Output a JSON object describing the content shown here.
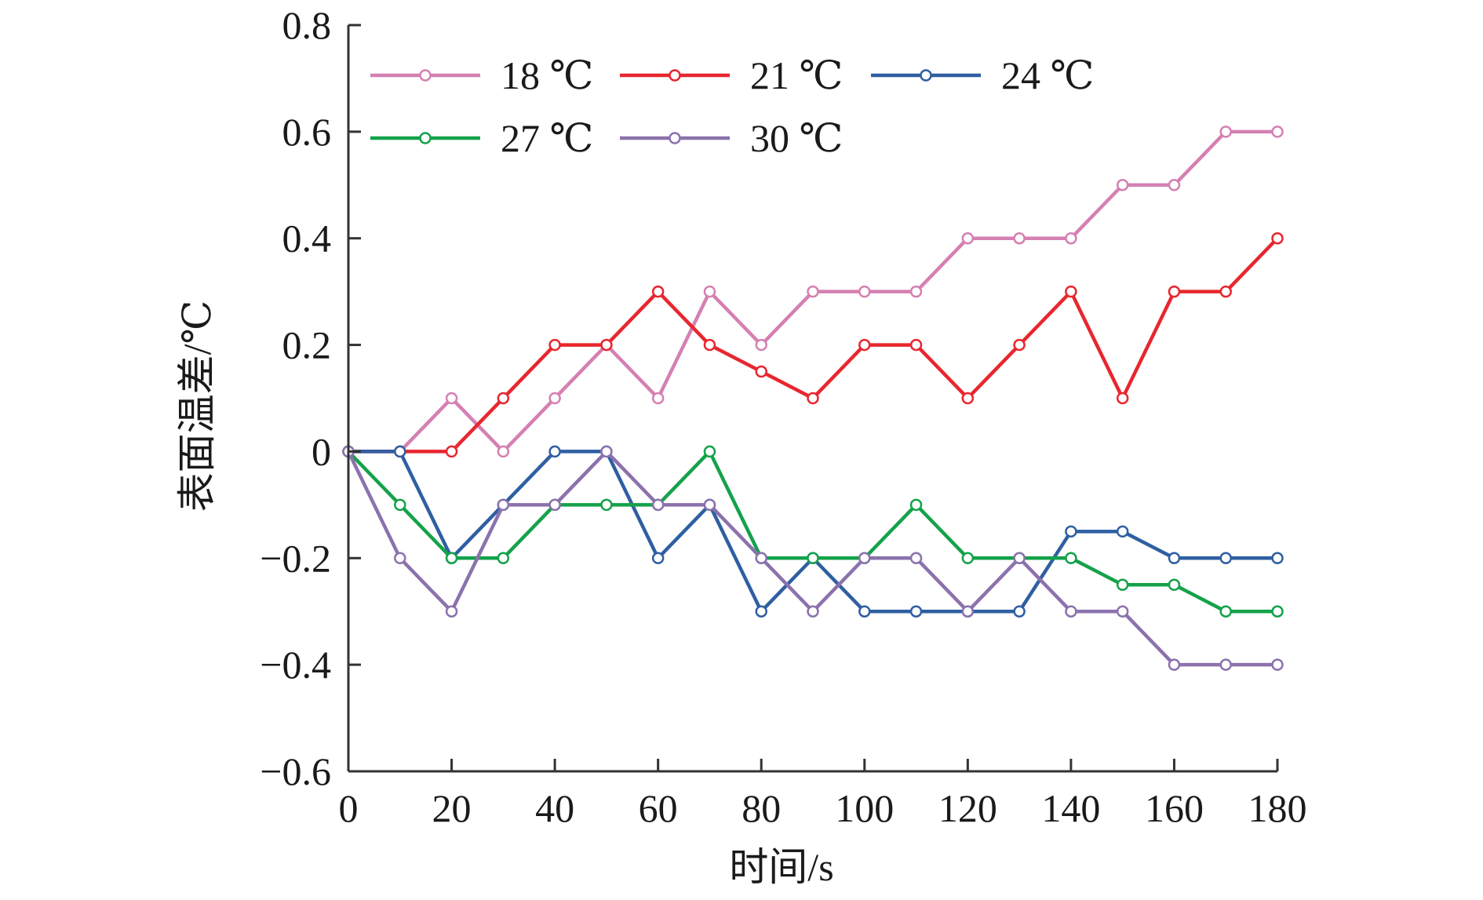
{
  "chart_data": {
    "type": "line",
    "title": "",
    "xlabel": "时间/s",
    "ylabel": "表面温差/℃",
    "xlim": [
      0,
      180
    ],
    "ylim": [
      -0.6,
      0.8
    ],
    "x_ticks": [
      0,
      20,
      40,
      60,
      80,
      100,
      120,
      140,
      160,
      180
    ],
    "x_tick_labels": [
      "0",
      "20",
      "40",
      "60",
      "80",
      "100",
      "120",
      "140",
      "160",
      "180"
    ],
    "y_ticks": [
      -0.6,
      -0.4,
      -0.2,
      0,
      0.2,
      0.4,
      0.6,
      0.8
    ],
    "y_tick_labels": [
      "−0.6",
      "−0.4",
      "−0.2",
      "0",
      "0.2",
      "0.4",
      "0.6",
      "0.8"
    ],
    "grid": false,
    "legend_position": "top",
    "x": [
      0,
      10,
      20,
      30,
      40,
      50,
      60,
      70,
      80,
      90,
      100,
      110,
      120,
      130,
      140,
      150,
      160,
      170,
      180
    ],
    "series": [
      {
        "name": "18 ℃",
        "color": "#d580b2",
        "values": [
          0,
          0,
          0.1,
          0,
          0.1,
          0.2,
          0.1,
          0.3,
          0.2,
          0.3,
          0.3,
          0.3,
          0.4,
          0.4,
          0.4,
          0.5,
          0.5,
          0.6,
          0.6
        ]
      },
      {
        "name": "21 ℃",
        "color": "#e8262f",
        "values": [
          0,
          0,
          0,
          0.1,
          0.2,
          0.2,
          0.3,
          0.2,
          0.15,
          0.1,
          0.2,
          0.2,
          0.1,
          0.2,
          0.3,
          0.1,
          0.3,
          0.3,
          0.4
        ]
      },
      {
        "name": "24 ℃",
        "color": "#2f5fa2",
        "values": [
          0,
          0,
          -0.2,
          -0.1,
          0,
          0,
          -0.2,
          -0.1,
          -0.3,
          -0.2,
          -0.3,
          -0.3,
          -0.3,
          -0.3,
          -0.15,
          -0.15,
          -0.2,
          -0.2,
          -0.2
        ]
      },
      {
        "name": "27 ℃",
        "color": "#14a24a",
        "values": [
          0,
          -0.1,
          -0.2,
          -0.2,
          -0.1,
          -0.1,
          -0.1,
          0,
          -0.2,
          -0.2,
          -0.2,
          -0.1,
          -0.2,
          -0.2,
          -0.2,
          -0.25,
          -0.25,
          -0.3,
          -0.3
        ]
      },
      {
        "name": "30 ℃",
        "color": "#8b72ad",
        "values": [
          0,
          -0.2,
          -0.3,
          -0.1,
          -0.1,
          0,
          -0.1,
          -0.1,
          -0.2,
          -0.3,
          -0.2,
          -0.2,
          -0.3,
          -0.2,
          -0.3,
          -0.3,
          -0.4,
          -0.4,
          -0.4
        ]
      }
    ]
  }
}
